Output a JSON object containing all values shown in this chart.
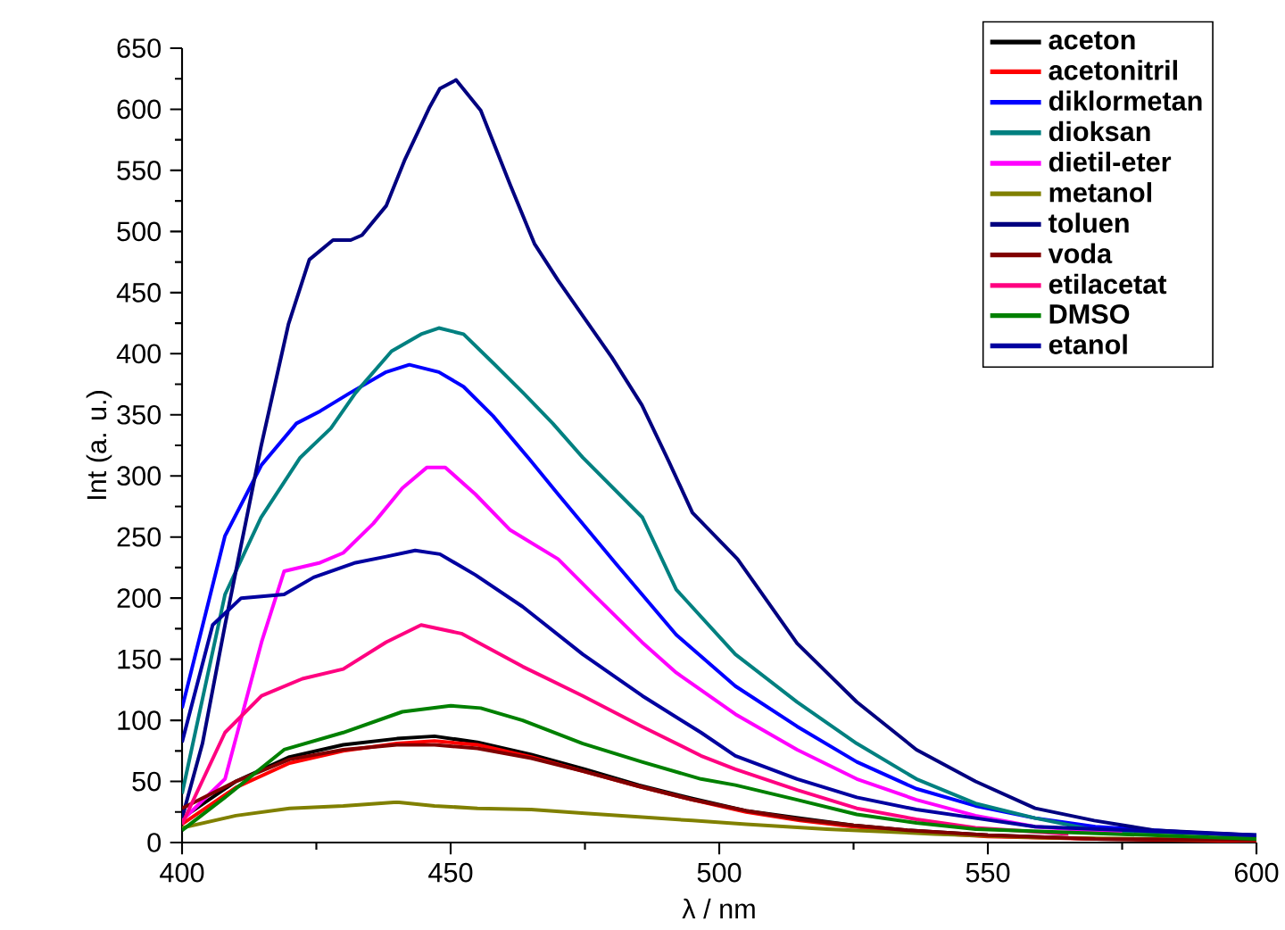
{
  "chart_data": {
    "type": "line",
    "xlabel": "λ / nm",
    "ylabel": "Int (a. u.)",
    "xlim": [
      400,
      600
    ],
    "ylim": [
      0,
      650
    ],
    "xticks": [
      400,
      450,
      500,
      550,
      600
    ],
    "yticks": [
      0,
      50,
      100,
      150,
      200,
      250,
      300,
      350,
      400,
      450,
      500,
      550,
      600,
      650
    ],
    "grid": false,
    "legend": "top right",
    "marker": "none",
    "line_style": "solid",
    "series": [
      {
        "name": "aceton",
        "color": "#000000",
        "x": [
          400,
          410,
          420,
          430,
          440,
          447,
          455,
          465,
          475,
          485,
          495,
          505,
          515,
          525,
          535,
          550,
          570,
          600
        ],
        "values": [
          20,
          50,
          70,
          80,
          85,
          87,
          82,
          72,
          60,
          47,
          36,
          26,
          20,
          14,
          10,
          6,
          3,
          1
        ]
      },
      {
        "name": "acetonitril",
        "color": "#ff0000",
        "x": [
          400,
          410,
          420,
          430,
          440,
          447,
          455,
          465,
          475,
          485,
          495,
          505,
          515,
          525,
          535,
          550,
          570,
          600
        ],
        "values": [
          15,
          45,
          65,
          75,
          81,
          83,
          80,
          70,
          58,
          46,
          35,
          25,
          18,
          13,
          9,
          5,
          3,
          1
        ]
      },
      {
        "name": "diklormetan",
        "color": "#0000ff",
        "x": [
          400,
          408,
          414.8,
          421.3,
          425.7,
          431.3,
          438,
          442.3,
          447.8,
          452.4,
          457.9,
          464.6,
          470,
          481,
          492,
          503,
          514.5,
          525.6,
          536.7,
          547.7,
          558.8,
          570,
          600
        ],
        "values": [
          110,
          251,
          309,
          343,
          353,
          368,
          385,
          391,
          385,
          373,
          349,
          314,
          285,
          227,
          170,
          128,
          95,
          66,
          44,
          30,
          20,
          13,
          5
        ]
      },
      {
        "name": "dioksan",
        "color": "#008080",
        "x": [
          400,
          408,
          414.7,
          422,
          427.7,
          432.3,
          439,
          444.5,
          447.8,
          452.4,
          458,
          463.5,
          469,
          474.6,
          485.7,
          492,
          503,
          514.5,
          525.6,
          536.7,
          547.7,
          558.8,
          570,
          600
        ],
        "values": [
          40,
          203,
          266,
          315,
          339,
          368,
          402,
          416,
          421,
          416,
          392,
          368,
          343,
          315,
          266,
          207,
          154,
          115,
          81,
          52,
          32,
          20,
          10,
          6
        ]
      },
      {
        "name": "dietil-eter",
        "color": "#ff00ff",
        "x": [
          400,
          408,
          414.8,
          419,
          425.7,
          430,
          435.6,
          441,
          445.6,
          449,
          454.6,
          461,
          470,
          476.6,
          485.6,
          492,
          503,
          514.5,
          525.6,
          536.7,
          547.7,
          558.8,
          575
        ],
        "values": [
          18,
          52,
          164,
          222,
          229,
          237,
          261,
          290,
          307,
          307,
          285,
          256,
          232,
          203,
          164,
          139,
          105,
          76,
          52,
          35,
          22,
          13,
          8
        ]
      },
      {
        "name": "metanol",
        "color": "#808000",
        "x": [
          400,
          410,
          420,
          430,
          440,
          447,
          455,
          465,
          475,
          485,
          495,
          505,
          520,
          540,
          560,
          600
        ],
        "values": [
          12,
          22,
          28,
          30,
          33,
          30,
          28,
          27,
          24,
          21,
          18,
          15,
          11,
          7,
          4,
          2
        ]
      },
      {
        "name": "toluen",
        "color": "#000080",
        "x": [
          400,
          403.8,
          408,
          414.7,
          419.8,
          423.7,
          428.1,
          431.4,
          433.5,
          438,
          441.4,
          446,
          448,
          451,
          455.6,
          461.1,
          465.6,
          470,
          474.6,
          480,
          485.6,
          490.6,
          495,
          503.4,
          514.5,
          525.6,
          536.7,
          547.7,
          558.8,
          569.8,
          580.9,
          600
        ],
        "values": [
          20,
          81,
          178,
          324,
          424,
          477,
          493,
          493,
          497,
          521,
          558,
          601,
          617,
          624,
          599,
          538,
          490,
          460,
          431,
          397,
          358,
          312,
          270,
          232,
          163,
          115,
          76,
          50,
          28,
          18,
          10,
          6
        ]
      },
      {
        "name": "voda",
        "color": "#800000",
        "x": [
          400,
          410,
          420,
          430,
          440,
          447,
          455,
          465,
          475,
          485,
          495,
          505,
          515,
          525,
          535,
          550,
          570,
          600
        ],
        "values": [
          28,
          50,
          68,
          76,
          80,
          80,
          77,
          69,
          58,
          46,
          35,
          26,
          19,
          14,
          10,
          6,
          3,
          2
        ]
      },
      {
        "name": "etilacetat",
        "color": "#ff0080",
        "x": [
          400,
          408,
          414.8,
          422.4,
          430,
          438,
          444.5,
          452,
          463.4,
          474.6,
          485.6,
          496.6,
          503,
          514.5,
          525.6,
          536.7,
          547.7,
          565
        ],
        "values": [
          15,
          90,
          120,
          134,
          142,
          164,
          178,
          171,
          144,
          120,
          95,
          71,
          60,
          43,
          28,
          19,
          12,
          7
        ]
      },
      {
        "name": "DMSO",
        "color": "#008000",
        "x": [
          400,
          408,
          419,
          430,
          441,
          450,
          455.6,
          463.4,
          474.6,
          485.6,
          496.6,
          503,
          514.5,
          525.6,
          536.7,
          547.7,
          600
        ],
        "values": [
          10,
          37,
          76,
          90,
          107,
          112,
          110,
          100,
          81,
          66,
          52,
          47,
          35,
          23,
          16,
          11,
          3
        ]
      },
      {
        "name": "etanol",
        "color": "#0000a0",
        "x": [
          400,
          405.7,
          411,
          419,
          424.5,
          432.3,
          438,
          443.4,
          448,
          454.6,
          463.4,
          474.6,
          485.7,
          496.6,
          503,
          514.5,
          525.6,
          536.7,
          547.7,
          558.8,
          600
        ],
        "values": [
          82,
          178,
          200,
          203,
          217,
          229,
          234,
          239,
          236,
          219,
          193,
          154,
          120,
          90,
          71,
          52,
          37,
          27,
          20,
          13,
          6
        ]
      }
    ]
  }
}
